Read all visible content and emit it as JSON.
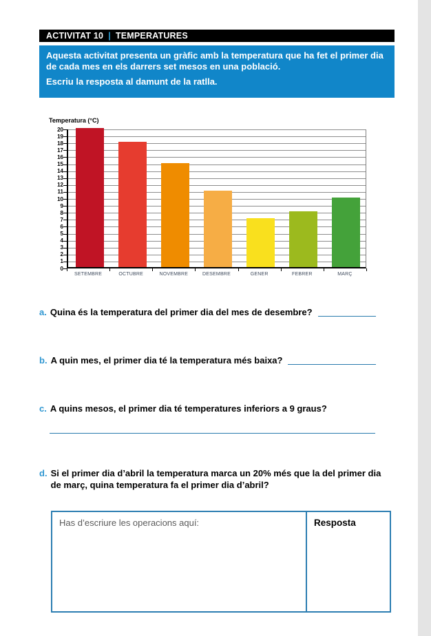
{
  "header": {
    "activity": "ACTIVITAT 10",
    "separator": "|",
    "title": "TEMPERATURES"
  },
  "instructions": {
    "line1": "Aquesta activitat presenta un gràfic amb la temperatura que ha fet el primer dia de cada mes en els darrers set mesos en una població.",
    "line2": "Escriu la resposta al damunt de la ratlla."
  },
  "chart_data": {
    "type": "bar",
    "title": "",
    "ylabel": "Temperatura (°C)",
    "xlabel": "",
    "categories": [
      "SETEMBRE",
      "OCTUBRE",
      "NOVEMBRE",
      "DESEMBRE",
      "GENER",
      "FEBRER",
      "MARÇ"
    ],
    "values": [
      20,
      18,
      15,
      11,
      7,
      8,
      10
    ],
    "bar_colors": [
      "#c01425",
      "#e63c2f",
      "#ef8c00",
      "#f6ad45",
      "#f9e01e",
      "#9cba1e",
      "#44a23a"
    ],
    "ylim": [
      0,
      20
    ],
    "ytick_step": 1,
    "grid": true,
    "legend": false
  },
  "questions": [
    {
      "letter": "a.",
      "text": "Quina és la temperatura del primer dia del mes de desembre?"
    },
    {
      "letter": "b.",
      "text": "A quin mes, el primer dia té la temperatura més baixa?"
    },
    {
      "letter": "c.",
      "text": "A quins mesos, el primer dia té temperatures inferiors a 9 graus?"
    },
    {
      "letter": "d.",
      "text": "Si el primer dia d’abril la temperatura marca un 20% més que la del primer dia de març, quina temperatura fa el primer dia d’abril?"
    }
  ],
  "work_table": {
    "operations_label": "Has d’escriure les operacions aquí:",
    "answer_label": "Resposta"
  },
  "colors": {
    "accent_blue": "#1186c9",
    "separator_blue": "#2e9fd4",
    "letter_blue": "#2e96d1",
    "line_blue": "#2779ad",
    "header_black": "#000000",
    "edge_shade": "#e4e4e4"
  }
}
